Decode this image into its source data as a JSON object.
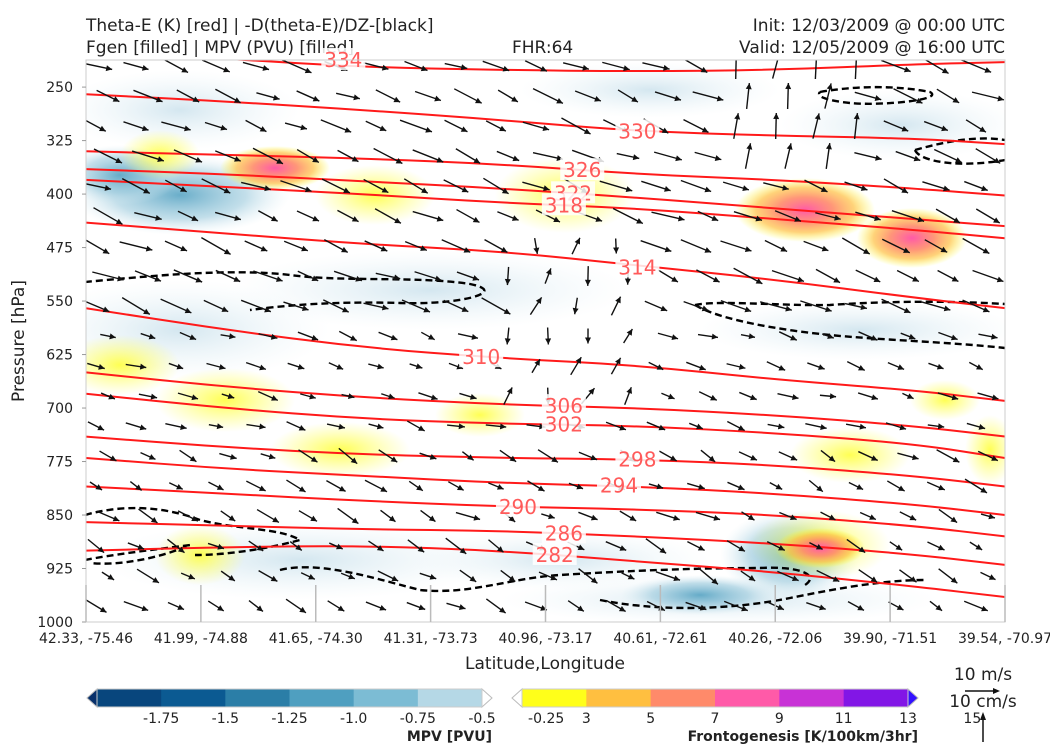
{
  "header": {
    "title_left_1": "Theta-E (K) [red] | -D(theta-E)/DZ-[black]",
    "title_left_2": "Fgen [filled] | MPV (PVU) [filled]",
    "fhr": "FHR:64",
    "init": "Init: 12/03/2009 @ 00:00 UTC",
    "valid": "Valid: 12/05/2009 @ 16:00 UTC"
  },
  "colors": {
    "theta_e": "#ff1a1a",
    "dthetae_dz": "#000000",
    "mpv_outline": "#8ea2c6",
    "axis": "#999999"
  },
  "chart_data": {
    "type": "cross-section",
    "xlabel": "Latitude,Longitude",
    "ylabel": "Pressure [hPa]",
    "y_ticks": [
      250,
      325,
      400,
      475,
      550,
      625,
      700,
      775,
      850,
      925,
      1000
    ],
    "ylim": [
      1000,
      212
    ],
    "x_ticks": [
      "42.33, -75.46",
      "41.99, -74.88",
      "41.65, -74.30",
      "41.31, -73.73",
      "40.96, -73.17",
      "40.61, -72.61",
      "40.26, -72.06",
      "39.90, -71.51",
      "39.54, -70.97"
    ],
    "theta_e_contours": [
      {
        "label": "334",
        "x": [
          0,
          1.2,
          2.4,
          3.6,
          4.8,
          6.0,
          7.2,
          8
        ],
        "p": [
          200,
          210,
          222,
          226,
          228,
          226,
          218,
          215
        ]
      },
      {
        "label": "330",
        "x": [
          0,
          1.2,
          2.4,
          3.6,
          4.8,
          6.0,
          7.2,
          8
        ],
        "p": [
          260,
          270,
          282,
          296,
          312,
          318,
          322,
          330
        ]
      },
      {
        "label": "326",
        "x": [
          0,
          1.2,
          2.4,
          3.6,
          4.8,
          6.0,
          7.2,
          8
        ],
        "p": [
          340,
          345,
          350,
          358,
          372,
          380,
          392,
          402
        ]
      },
      {
        "label": "322",
        "x": [
          0,
          1.2,
          2.4,
          3.6,
          4.8,
          6.0,
          7.2,
          8
        ],
        "p": [
          365,
          372,
          382,
          392,
          405,
          420,
          435,
          445
        ]
      },
      {
        "label": "318",
        "x": [
          0,
          1.2,
          2.4,
          3.6,
          4.8,
          6.0,
          7.2,
          8
        ],
        "p": [
          380,
          390,
          400,
          412,
          420,
          435,
          450,
          462
        ]
      },
      {
        "label": "314",
        "x": [
          0,
          1.2,
          2.4,
          3.6,
          4.8,
          6.0,
          7.2,
          8
        ],
        "p": [
          440,
          455,
          470,
          480,
          500,
          520,
          545,
          560
        ]
      },
      {
        "label": "310",
        "x": [
          0,
          1.2,
          2.4,
          3.6,
          4.8,
          6.0,
          7.2,
          8
        ],
        "p": [
          560,
          590,
          615,
          630,
          640,
          660,
          675,
          690
        ]
      },
      {
        "label": "306",
        "x": [
          0,
          1.2,
          2.4,
          3.6,
          4.8,
          6.0,
          7.2,
          8
        ],
        "p": [
          650,
          670,
          685,
          695,
          700,
          710,
          725,
          740
        ]
      },
      {
        "label": "302",
        "x": [
          0,
          1.2,
          2.4,
          3.6,
          4.8,
          6.0,
          7.2,
          8
        ],
        "p": [
          680,
          700,
          715,
          722,
          725,
          735,
          750,
          770
        ]
      },
      {
        "label": "298",
        "x": [
          0,
          1.2,
          2.4,
          3.6,
          4.8,
          6.0,
          7.2,
          8
        ],
        "p": [
          740,
          755,
          765,
          770,
          772,
          780,
          795,
          810
        ]
      },
      {
        "label": "294",
        "x": [
          0,
          1.2,
          2.4,
          3.6,
          4.8,
          6.0,
          7.2,
          8
        ],
        "p": [
          770,
          785,
          795,
          805,
          810,
          820,
          835,
          850
        ]
      },
      {
        "label": "290",
        "x": [
          0,
          1.2,
          2.4,
          3.6,
          4.8,
          6.0,
          7.2,
          8
        ],
        "p": [
          810,
          820,
          830,
          838,
          842,
          850,
          865,
          880
        ]
      },
      {
        "label": "286",
        "x": [
          0,
          1.2,
          2.4,
          3.6,
          4.8,
          6.0,
          7.2,
          8
        ],
        "p": [
          860,
          865,
          870,
          872,
          880,
          890,
          905,
          920
        ]
      },
      {
        "label": "282",
        "x": [
          0,
          1.2,
          2.4,
          3.6,
          4.8,
          6.0,
          7.2,
          8
        ],
        "p": [
          900,
          895,
          893,
          900,
          915,
          930,
          950,
          965
        ]
      }
    ],
    "mpv_colorbar": {
      "label": "MPV [PVU]",
      "ticks": [
        "-1.75",
        "-1.5",
        "-1.25",
        "-1.0",
        "-0.75",
        "-0.5",
        "-0.25"
      ],
      "colors": [
        "#08306b",
        "#08467d",
        "#0b5a92",
        "#2b7ea7",
        "#4f9fc0",
        "#7cbcd4",
        "#b5d8e6",
        "#ffffff"
      ]
    },
    "fgen_colorbar": {
      "label": "Frontogenesis [K/100km/3hr]",
      "ticks": [
        "3",
        "5",
        "7",
        "9",
        "11",
        "13",
        "15"
      ],
      "colors": [
        "#ffffff",
        "#ffff1a",
        "#ffbf40",
        "#ff8a6a",
        "#ff5aa8",
        "#c832d6",
        "#8216e6",
        "#3311ff"
      ]
    },
    "wind_key": {
      "label_1": "10 m/s",
      "label_2": "10 cm/s"
    }
  }
}
